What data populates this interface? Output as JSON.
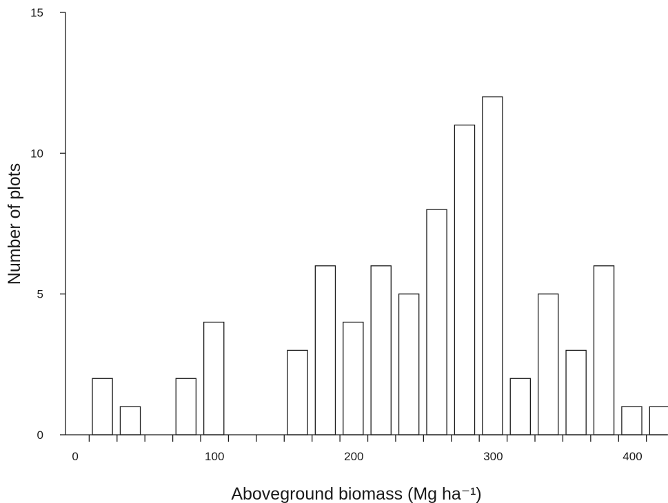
{
  "chart_data": {
    "type": "bar",
    "xlabel": "Aboveground biomass (Mg ha⁻¹)",
    "ylabel": "Number of plots",
    "x_ticks": [
      0,
      100,
      200,
      300,
      400
    ],
    "y_ticks": [
      0,
      5,
      10,
      15
    ],
    "xlim": [
      -7,
      425
    ],
    "ylim": [
      0,
      15
    ],
    "bin_width": 20,
    "bins": [
      {
        "start": 0,
        "count": 0
      },
      {
        "start": 20,
        "count": 2
      },
      {
        "start": 40,
        "count": 1
      },
      {
        "start": 60,
        "count": 0
      },
      {
        "start": 80,
        "count": 2
      },
      {
        "start": 100,
        "count": 4
      },
      {
        "start": 120,
        "count": 0
      },
      {
        "start": 140,
        "count": 0
      },
      {
        "start": 160,
        "count": 3
      },
      {
        "start": 180,
        "count": 6
      },
      {
        "start": 200,
        "count": 4
      },
      {
        "start": 220,
        "count": 6
      },
      {
        "start": 240,
        "count": 5
      },
      {
        "start": 260,
        "count": 8
      },
      {
        "start": 280,
        "count": 11
      },
      {
        "start": 300,
        "count": 12
      },
      {
        "start": 320,
        "count": 2
      },
      {
        "start": 340,
        "count": 5
      },
      {
        "start": 360,
        "count": 3
      },
      {
        "start": 380,
        "count": 6
      },
      {
        "start": 400,
        "count": 1
      },
      {
        "start": 420,
        "count": 1
      }
    ],
    "grid": false,
    "legend": "none"
  }
}
